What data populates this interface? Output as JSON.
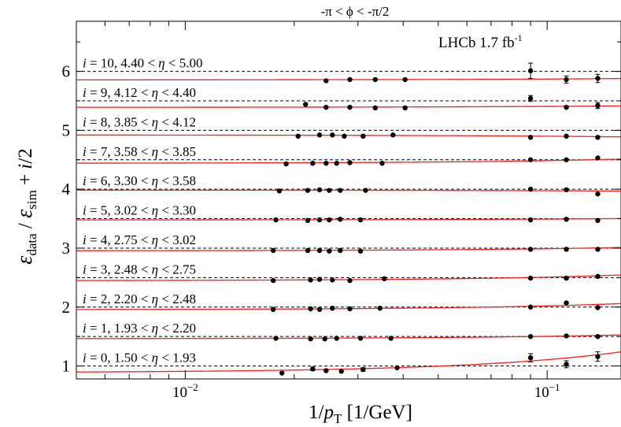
{
  "chart_data": {
    "type": "scatter",
    "title": "-π < ϕ < -π/2",
    "annotation": "LHCb 1.7 fb",
    "annotation_sup": "-1",
    "xlabel": {
      "pre": "1/",
      "var": "p",
      "sub": "T",
      "post": " [1/GeV]"
    },
    "ylabel": {
      "eps": "ε",
      "sub1": "data",
      "mid": " / ",
      "sub2": "sim",
      "post": " + ",
      "i": "i",
      "half": "/2"
    },
    "x_scale": "log",
    "xlim": [
      0.005,
      0.16
    ],
    "ylim": [
      0.78,
      6.85
    ],
    "x_ticks": [
      {
        "value": 0.01,
        "base": "10",
        "exp": "−2"
      },
      {
        "value": 0.1,
        "base": "10",
        "exp": "−1"
      }
    ],
    "y_ticks": [
      1,
      2,
      3,
      4,
      5,
      6
    ],
    "colors": {
      "fit": "#ee2222",
      "points": "#000000",
      "reference": "#000000"
    },
    "series": [
      {
        "i": 0,
        "label_i": "i",
        "label_rest": " = 0,  1.50 < ",
        "label_eta": "η",
        "label_end": " < 1.93",
        "ref": 1.0,
        "fit": {
          "a": 0.887,
          "b": 2.2
        },
        "points": [
          [
            0.0185,
            0.88
          ],
          [
            0.0225,
            0.95
          ],
          [
            0.0245,
            0.92
          ],
          [
            0.027,
            0.91
          ],
          [
            0.031,
            0.94
          ],
          [
            0.0385,
            0.97
          ],
          [
            0.09,
            1.14
          ],
          [
            0.113,
            1.03
          ],
          [
            0.138,
            1.16
          ]
        ],
        "errors": [
          0,
          0.03,
          0,
          0,
          0.03,
          0,
          0.07,
          0.06,
          0.08
        ]
      },
      {
        "i": 1,
        "label_i": "i",
        "label_rest": " = 1,  1.93 < ",
        "label_eta": "η",
        "label_end": " < 2.20",
        "ref": 1.5,
        "fit": {
          "a": 1.463,
          "b": 0.4
        },
        "points": [
          [
            0.0178,
            1.47
          ],
          [
            0.0222,
            1.46
          ],
          [
            0.0243,
            1.46
          ],
          [
            0.0262,
            1.47
          ],
          [
            0.0305,
            1.47
          ],
          [
            0.037,
            1.47
          ],
          [
            0.09,
            1.5
          ],
          [
            0.113,
            1.51
          ],
          [
            0.138,
            1.5
          ]
        ],
        "errors": [
          0,
          0,
          0,
          0,
          0,
          0,
          0,
          0,
          0
        ]
      },
      {
        "i": 2,
        "label_i": "i",
        "label_rest": " = 2,  2.20 < ",
        "label_eta": "η",
        "label_end": " < 2.48",
        "ref": 2.0,
        "fit": {
          "a": 1.955,
          "b": 0.65
        },
        "points": [
          [
            0.0175,
            1.96
          ],
          [
            0.0222,
            1.97
          ],
          [
            0.0235,
            1.96
          ],
          [
            0.0255,
            1.98
          ],
          [
            0.0285,
            1.97
          ],
          [
            0.0345,
            1.98
          ],
          [
            0.09,
            2.0
          ],
          [
            0.113,
            2.07
          ],
          [
            0.138,
            1.99
          ]
        ],
        "errors": [
          0,
          0,
          0,
          0,
          0,
          0,
          0,
          0,
          0
        ]
      },
      {
        "i": 3,
        "label_i": "i",
        "label_rest": " = 3,  2.48 < ",
        "label_eta": "η",
        "label_end": " < 2.75",
        "ref": 2.5,
        "fit": {
          "a": 2.448,
          "b": 0.6
        },
        "points": [
          [
            0.0175,
            2.45
          ],
          [
            0.0222,
            2.46
          ],
          [
            0.0235,
            2.47
          ],
          [
            0.0255,
            2.46
          ],
          [
            0.0285,
            2.45
          ],
          [
            0.0355,
            2.48
          ],
          [
            0.09,
            2.49
          ],
          [
            0.113,
            2.49
          ],
          [
            0.138,
            2.52
          ]
        ],
        "errors": [
          0,
          0,
          0,
          0,
          0,
          0,
          0,
          0,
          0
        ]
      },
      {
        "i": 4,
        "label_i": "i",
        "label_rest": " = 4,  2.75 < ",
        "label_eta": "η",
        "label_end": " < 3.02",
        "ref": 3.0,
        "fit": {
          "a": 2.955,
          "b": 0.35
        },
        "points": [
          [
            0.0175,
            2.96
          ],
          [
            0.0218,
            2.96
          ],
          [
            0.0235,
            2.96
          ],
          [
            0.025,
            2.95
          ],
          [
            0.0268,
            2.96
          ],
          [
            0.0305,
            2.95
          ],
          [
            0.09,
            2.98
          ],
          [
            0.113,
            2.98
          ],
          [
            0.138,
            2.98
          ]
        ],
        "errors": [
          0,
          0,
          0,
          0,
          0,
          0,
          0,
          0,
          0
        ]
      },
      {
        "i": 5,
        "label_i": "i",
        "label_rest": " = 5,  3.02 < ",
        "label_eta": "η",
        "label_end": " < 3.30",
        "ref": 3.5,
        "fit": {
          "a": 3.478,
          "b": 0.15
        },
        "points": [
          [
            0.0178,
            3.48
          ],
          [
            0.0218,
            3.47
          ],
          [
            0.0235,
            3.48
          ],
          [
            0.025,
            3.48
          ],
          [
            0.0268,
            3.49
          ],
          [
            0.0305,
            3.48
          ],
          [
            0.09,
            3.48
          ],
          [
            0.113,
            3.49
          ],
          [
            0.138,
            3.47
          ]
        ],
        "errors": [
          0,
          0,
          0,
          0,
          0,
          0,
          0,
          0,
          0
        ]
      },
      {
        "i": 6,
        "label_i": "i",
        "label_rest": " = 6,  3.30 < ",
        "label_eta": "η",
        "label_end": " < 3.58",
        "ref": 4.0,
        "fit": {
          "a": 3.985,
          "b": -0.1
        },
        "points": [
          [
            0.0182,
            3.97
          ],
          [
            0.0218,
            3.98
          ],
          [
            0.0235,
            3.99
          ],
          [
            0.025,
            3.98
          ],
          [
            0.0268,
            3.98
          ],
          [
            0.0315,
            3.98
          ],
          [
            0.09,
            4.0
          ],
          [
            0.113,
            3.99
          ],
          [
            0.138,
            3.92
          ]
        ],
        "errors": [
          0,
          0,
          0,
          0,
          0,
          0,
          0,
          0,
          0
        ]
      },
      {
        "i": 7,
        "label_i": "i",
        "label_rest": " = 7,  3.58 < ",
        "label_eta": "η",
        "label_end": " < 3.85",
        "ref": 4.5,
        "fit": {
          "a": 4.44,
          "b": 0.45
        },
        "points": [
          [
            0.019,
            4.43
          ],
          [
            0.0225,
            4.44
          ],
          [
            0.0245,
            4.44
          ],
          [
            0.0262,
            4.44
          ],
          [
            0.0285,
            4.45
          ],
          [
            0.035,
            4.44
          ],
          [
            0.09,
            4.5
          ],
          [
            0.113,
            4.5
          ],
          [
            0.138,
            4.53
          ]
        ],
        "errors": [
          0,
          0,
          0,
          0,
          0,
          0,
          0,
          0,
          0
        ]
      },
      {
        "i": 8,
        "label_i": "i",
        "label_rest": " = 8,  3.85 < ",
        "label_eta": "η",
        "label_end": " < 4.12",
        "ref": 5.0,
        "fit": {
          "a": 4.92,
          "b": -0.2
        },
        "points": [
          [
            0.0205,
            4.9
          ],
          [
            0.0235,
            4.92
          ],
          [
            0.0255,
            4.92
          ],
          [
            0.0275,
            4.9
          ],
          [
            0.031,
            4.9
          ],
          [
            0.0375,
            4.92
          ],
          [
            0.09,
            4.88
          ],
          [
            0.113,
            4.9
          ],
          [
            0.138,
            4.88
          ]
        ],
        "errors": [
          0,
          0,
          0,
          0,
          0,
          0,
          0,
          0,
          0
        ]
      },
      {
        "i": 9,
        "label_i": "i",
        "label_rest": " = 9,  4.12 < ",
        "label_eta": "η",
        "label_end": " < 4.40",
        "ref": 5.5,
        "fit": {
          "a": 5.39,
          "b": 0.15
        },
        "points": [
          [
            0.0215,
            5.44
          ],
          [
            0.0245,
            5.39
          ],
          [
            0.0285,
            5.39
          ],
          [
            0.0335,
            5.38
          ],
          [
            0.0405,
            5.38
          ],
          [
            0.09,
            5.54
          ],
          [
            0.113,
            5.39
          ],
          [
            0.138,
            5.42
          ]
        ],
        "errors": [
          0,
          0,
          0,
          0,
          0,
          0.05,
          0,
          0.05
        ]
      },
      {
        "i": 10,
        "label_i": "i",
        "label_rest": " = 10,  4.40 < ",
        "label_eta": "η",
        "label_end": " < 5.00",
        "ref": 6.0,
        "fit": {
          "a": 5.855,
          "b": 0.15
        },
        "points": [
          [
            0.0245,
            5.84
          ],
          [
            0.0285,
            5.86
          ],
          [
            0.0335,
            5.86
          ],
          [
            0.0405,
            5.86
          ],
          [
            0.09,
            6.01
          ],
          [
            0.113,
            5.86
          ],
          [
            0.138,
            5.88
          ]
        ],
        "errors": [
          0,
          0,
          0,
          0,
          0.13,
          0.06,
          0.07
        ]
      }
    ]
  }
}
